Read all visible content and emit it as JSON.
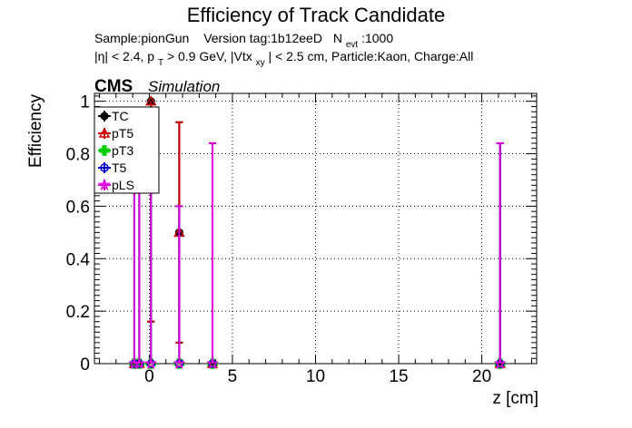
{
  "chart_data": {
    "type": "scatter",
    "title": "Efficiency of Track Candidate",
    "subtitle_line1": {
      "sample": "Sample:pionGun",
      "version": "Version tag:1b12eeD",
      "nevt_prefix": "N",
      "nevt_sub": "evt",
      "nevt_value": ":1000"
    },
    "subtitle_line2": {
      "eta": "|η| < 2.4, p",
      "pt_sub": "T",
      "pt_rest": " > 0.9 GeV, |Vtx",
      "vtx_sub": "xy",
      "rest": "| < 2.5 cm, Particle:Kaon, Charge:All"
    },
    "cms_label": "CMS",
    "simulation_label": "Simulation",
    "xlabel": "z [cm]",
    "ylabel": "Efficiency",
    "xlim": [
      -3.3,
      23.3
    ],
    "ylim": [
      0,
      1.03
    ],
    "x_ticks": [
      0,
      5,
      10,
      15,
      20
    ],
    "x_tick_labels": [
      "0",
      "5",
      "10",
      "15",
      "20"
    ],
    "y_ticks": [
      0,
      0.2,
      0.4,
      0.6,
      0.8,
      1
    ],
    "y_tick_labels": [
      "0",
      "0.2",
      "0.4",
      "0.6",
      "0.8",
      "1"
    ],
    "grid": true,
    "legend_position": "top-left",
    "series": [
      {
        "name": "TC",
        "color": "#000000",
        "marker": "filled-circle",
        "points": [
          {
            "x": -0.9,
            "y": 0,
            "lo": 0,
            "hi": 0.84
          },
          {
            "x": -0.6,
            "y": 0,
            "lo": 0,
            "hi": 0.84
          },
          {
            "x": 0.1,
            "y": 1,
            "lo": 0.16,
            "hi": 1
          },
          {
            "x": 1.8,
            "y": 0.5,
            "lo": 0.08,
            "hi": 0.92
          },
          {
            "x": 3.8,
            "y": 0,
            "lo": 0,
            "hi": 0.84
          },
          {
            "x": 21.1,
            "y": 0,
            "lo": 0,
            "hi": 0.84
          }
        ]
      },
      {
        "name": "pT5",
        "color": "#cc0000",
        "marker": "open-triangle",
        "points": [
          {
            "x": -0.9,
            "y": 0,
            "lo": 0,
            "hi": 0.84
          },
          {
            "x": -0.6,
            "y": 0,
            "lo": 0,
            "hi": 0.84
          },
          {
            "x": 0.1,
            "y": 1,
            "lo": 0.16,
            "hi": 1
          },
          {
            "x": 1.8,
            "y": 0.5,
            "lo": 0.08,
            "hi": 0.92
          },
          {
            "x": 3.8,
            "y": 0,
            "lo": 0,
            "hi": 0.84
          },
          {
            "x": 21.1,
            "y": 0,
            "lo": 0,
            "hi": 0.84
          }
        ]
      },
      {
        "name": "pT3",
        "color": "#00cc00",
        "marker": "open-cross",
        "points": [
          {
            "x": -0.9,
            "y": 0,
            "lo": 0,
            "hi": 0.84
          },
          {
            "x": -0.6,
            "y": 0,
            "lo": 0,
            "hi": 0.84
          },
          {
            "x": 0.1,
            "y": 0,
            "lo": 0,
            "hi": 0.84
          },
          {
            "x": 1.8,
            "y": 0,
            "lo": 0,
            "hi": 0.6
          },
          {
            "x": 3.8,
            "y": 0,
            "lo": 0,
            "hi": 0.84
          },
          {
            "x": 21.1,
            "y": 0,
            "lo": 0,
            "hi": 0.84
          }
        ]
      },
      {
        "name": "T5",
        "color": "#0000cc",
        "marker": "open-circle",
        "points": [
          {
            "x": -0.9,
            "y": 0,
            "lo": 0,
            "hi": 0.84
          },
          {
            "x": -0.6,
            "y": 0,
            "lo": 0,
            "hi": 0.84
          },
          {
            "x": 0.1,
            "y": 0,
            "lo": 0,
            "hi": 0.84
          },
          {
            "x": 1.8,
            "y": 0,
            "lo": 0,
            "hi": 0.6
          },
          {
            "x": 3.8,
            "y": 0,
            "lo": 0,
            "hi": 0.84
          },
          {
            "x": 21.1,
            "y": 0,
            "lo": 0,
            "hi": 0.84
          }
        ]
      },
      {
        "name": "pLS",
        "color": "#dd00dd",
        "marker": "open-star",
        "points": [
          {
            "x": -0.9,
            "y": 0,
            "lo": 0,
            "hi": 0.84
          },
          {
            "x": -0.6,
            "y": 0,
            "lo": 0,
            "hi": 0.84
          },
          {
            "x": 0.1,
            "y": 0,
            "lo": 0,
            "hi": 0.84
          },
          {
            "x": 1.8,
            "y": 0,
            "lo": 0,
            "hi": 0.6
          },
          {
            "x": 3.8,
            "y": 0,
            "lo": 0,
            "hi": 0.84
          },
          {
            "x": 21.1,
            "y": 0,
            "lo": 0,
            "hi": 0.84
          }
        ]
      }
    ]
  }
}
